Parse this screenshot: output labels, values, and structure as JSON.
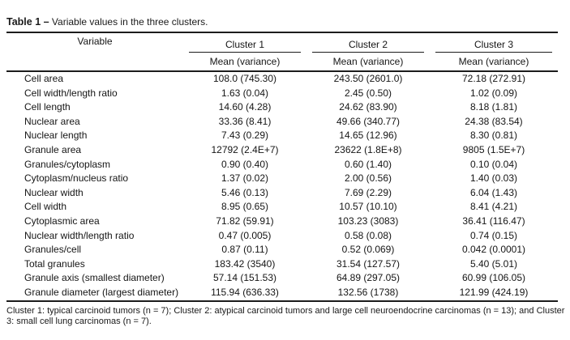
{
  "title": {
    "label": "Table 1 –",
    "text": "Variable values in the three clusters."
  },
  "table": {
    "variable_header": "Variable",
    "cluster_headers": [
      "Cluster 1",
      "Cluster 2",
      "Cluster 3"
    ],
    "subheader": "Mean (variance)",
    "rows": [
      {
        "variable": "Cell area",
        "c1": "108.0 (745.30)",
        "c2": "243.50 (2601.0)",
        "c3": "72.18 (272.91)"
      },
      {
        "variable": "Cell width/length ratio",
        "c1": "1.63 (0.04)",
        "c2": "2.45 (0.50)",
        "c3": "1.02 (0.09)"
      },
      {
        "variable": "Cell length",
        "c1": "14.60 (4.28)",
        "c2": "24.62 (83.90)",
        "c3": "8.18 (1.81)"
      },
      {
        "variable": "Nuclear area",
        "c1": "33.36 (8.41)",
        "c2": "49.66 (340.77)",
        "c3": "24.38 (83.54)"
      },
      {
        "variable": "Nuclear length",
        "c1": "7.43 (0.29)",
        "c2": "14.65 (12.96)",
        "c3": "8.30 (0.81)"
      },
      {
        "variable": "Granule area",
        "c1": "12792 (2.4E+7)",
        "c2": "23622 (1.8E+8)",
        "c3": "9805 (1.5E+7)"
      },
      {
        "variable": "Granules/cytoplasm",
        "c1": "0.90 (0.40)",
        "c2": "0.60 (1.40)",
        "c3": "0.10 (0.04)"
      },
      {
        "variable": "Cytoplasm/nucleus ratio",
        "c1": "1.37 (0.02)",
        "c2": "2.00 (0.56)",
        "c3": "1.40 (0.03)"
      },
      {
        "variable": "Nuclear width",
        "c1": "5.46 (0.13)",
        "c2": "7.69 (2.29)",
        "c3": "6.04 (1.43)"
      },
      {
        "variable": "Cell width",
        "c1": "8.95 (0.65)",
        "c2": "10.57 (10.10)",
        "c3": "8.41 (4.21)"
      },
      {
        "variable": "Cytoplasmic area",
        "c1": "71.82 (59.91)",
        "c2": "103.23 (3083)",
        "c3": "36.41 (116.47)"
      },
      {
        "variable": "Nuclear width/length ratio",
        "c1": "0.47 (0.005)",
        "c2": "0.58 (0.08)",
        "c3": "0.74 (0.15)"
      },
      {
        "variable": "Granules/cell",
        "c1": "0.87 (0.11)",
        "c2": "0.52 (0.069)",
        "c3": "0.042 (0.0001)"
      },
      {
        "variable": "Total granules",
        "c1": "183.42 (3540)",
        "c2": "31.54 (127.57)",
        "c3": "5.40 (5.01)"
      },
      {
        "variable": "Granule axis (smallest diameter)",
        "c1": "57.14 (151.53)",
        "c2": "64.89 (297.05)",
        "c3": "60.99 (106.05)"
      },
      {
        "variable": "Granule diameter (largest diameter)",
        "c1": "115.94 (636.33)",
        "c2": "132.56 (1738)",
        "c3": "121.99 (424.19)"
      }
    ]
  },
  "footnote": {
    "text": "Cluster 1: typical carcinoid tumors (n = 7); Cluster 2: atypical carcinoid tumors and large cell neuroendocrine carcinomas (n = 13); and Cluster 3: small cell lung carcinomas (n = 7)."
  }
}
